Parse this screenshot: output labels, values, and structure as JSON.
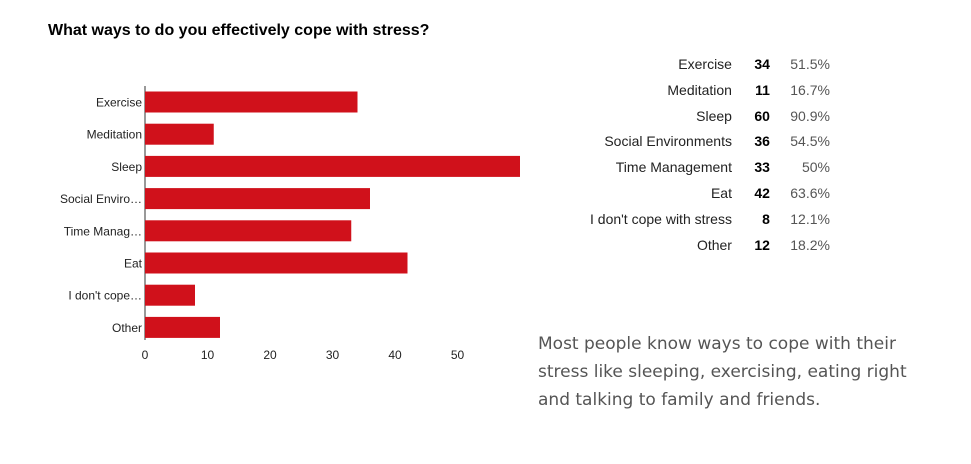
{
  "chart_data": {
    "type": "bar",
    "orientation": "horizontal",
    "title": "What ways to do you effectively cope with stress?",
    "categories": [
      "Exercise",
      "Meditation",
      "Sleep",
      "Social Enviro…",
      "Time Manag…",
      "Eat",
      "I don't cope…",
      "Other"
    ],
    "values": [
      34,
      11,
      60,
      36,
      33,
      42,
      8,
      12
    ],
    "xlim": [
      0,
      60
    ],
    "xticks": [
      0,
      10,
      20,
      30,
      40,
      50
    ],
    "xlabel": "",
    "ylabel": "",
    "grid": false,
    "bar_color": "#d0111b"
  },
  "summary_table": {
    "rows": [
      {
        "label": "Exercise",
        "count": "34",
        "percent": "51.5%"
      },
      {
        "label": "Meditation",
        "count": "11",
        "percent": "16.7%"
      },
      {
        "label": "Sleep",
        "count": "60",
        "percent": "90.9%"
      },
      {
        "label": "Social Environments",
        "count": "36",
        "percent": "54.5%"
      },
      {
        "label": "Time Management",
        "count": "33",
        "percent": "50%"
      },
      {
        "label": "Eat",
        "count": "42",
        "percent": "63.6%"
      },
      {
        "label": "I don't cope with stress",
        "count": "8",
        "percent": "12.1%"
      },
      {
        "label": "Other",
        "count": "12",
        "percent": "18.2%"
      }
    ]
  },
  "note": "Most people know ways to cope with their stress like sleeping, exercising, eating right and talking to family and friends."
}
